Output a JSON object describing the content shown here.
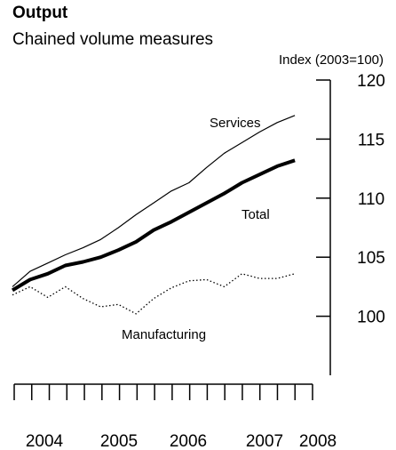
{
  "chart_data": {
    "type": "line",
    "title": "Output",
    "subtitle": "Chained volume measures",
    "ylabel": "Index (2003=100)",
    "ylim": [
      95,
      120
    ],
    "yticks": [
      100,
      105,
      110,
      115,
      120
    ],
    "x_labels": [
      "2004",
      "2005",
      "2006",
      "2007",
      "2008"
    ],
    "x_quarter_ticks": 18,
    "x": [
      "2004Q1",
      "2004Q2",
      "2004Q3",
      "2004Q4",
      "2005Q1",
      "2005Q2",
      "2005Q3",
      "2005Q4",
      "2006Q1",
      "2006Q2",
      "2006Q3",
      "2006Q4",
      "2007Q1",
      "2007Q2",
      "2007Q3",
      "2007Q4",
      "2008Q1",
      "2008Q2"
    ],
    "grid": false,
    "legend": "none",
    "series": [
      {
        "name": "Services",
        "color": "#000000",
        "style": "thin",
        "values": [
          102.5,
          103.8,
          104.5,
          105.2,
          105.8,
          106.5,
          107.5,
          108.6,
          109.6,
          110.6,
          111.3,
          112.6,
          113.8,
          114.7,
          115.6,
          116.4,
          117.0,
          null
        ]
      },
      {
        "name": "Total",
        "color": "#000000",
        "style": "thick",
        "values": [
          102.2,
          103.1,
          103.6,
          104.3,
          104.6,
          105.0,
          105.6,
          106.3,
          107.3,
          108.0,
          108.8,
          109.6,
          110.4,
          111.3,
          112.0,
          112.7,
          113.2,
          null
        ]
      },
      {
        "name": "Manufacturing",
        "color": "#000000",
        "style": "dotted",
        "values": [
          101.8,
          102.5,
          101.6,
          102.5,
          101.5,
          100.8,
          101.0,
          100.2,
          101.5,
          102.4,
          103.0,
          103.1,
          102.5,
          103.6,
          103.2,
          103.2,
          103.6,
          null
        ]
      }
    ]
  }
}
